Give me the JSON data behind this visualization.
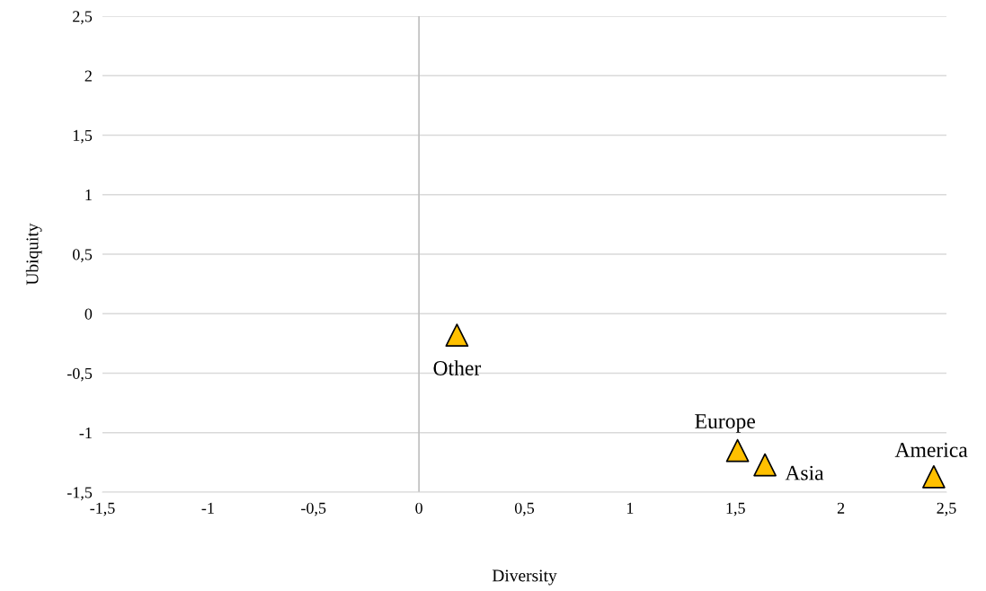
{
  "chart_data": {
    "type": "scatter",
    "xlabel": "Diversity",
    "ylabel": "Ubiquity",
    "x": [
      0.18,
      1.51,
      1.64,
      2.44
    ],
    "series": [
      {
        "color": "#ffc000",
        "values": [
          -0.18,
          -1.15,
          -1.27,
          -1.37
        ]
      }
    ],
    "xlim": [
      -1.5,
      2.5
    ],
    "ylim": [
      -1.5,
      2.5
    ],
    "xticks": [
      {
        "value": -1.5,
        "label": "-1,5"
      },
      {
        "value": -1,
        "label": "-1"
      },
      {
        "value": -0.5,
        "label": "-0,5"
      },
      {
        "value": 0,
        "label": "0"
      },
      {
        "value": 0.5,
        "label": "0,5"
      },
      {
        "value": 1,
        "label": "1"
      },
      {
        "value": 1.5,
        "label": "1,5"
      },
      {
        "value": 2,
        "label": "2"
      },
      {
        "value": 2.5,
        "label": "2,5"
      }
    ],
    "yticks": [
      {
        "value": -1.5,
        "label": "-1,5"
      },
      {
        "value": -1,
        "label": "-1"
      },
      {
        "value": -0.5,
        "label": "-0,5"
      },
      {
        "value": 0,
        "label": "0"
      },
      {
        "value": 0.5,
        "label": "0,5"
      },
      {
        "value": 1,
        "label": "1"
      },
      {
        "value": 1.5,
        "label": "1,5"
      },
      {
        "value": 2,
        "label": "2"
      },
      {
        "value": 2.5,
        "label": "2,5"
      }
    ],
    "grid": "y",
    "marker": "triangle",
    "ref_lines": [
      {
        "axis": "x",
        "value": 0,
        "color": "#bfbfbf"
      }
    ],
    "annotations": [
      {
        "text": "Other",
        "x": 0.18,
        "y": -0.18
      },
      {
        "text": "Europe",
        "x": 1.51,
        "y": -1.15
      },
      {
        "text": "Asia",
        "x": 1.64,
        "y": -1.27
      },
      {
        "text": "America",
        "x": 2.44,
        "y": -1.37
      }
    ]
  }
}
